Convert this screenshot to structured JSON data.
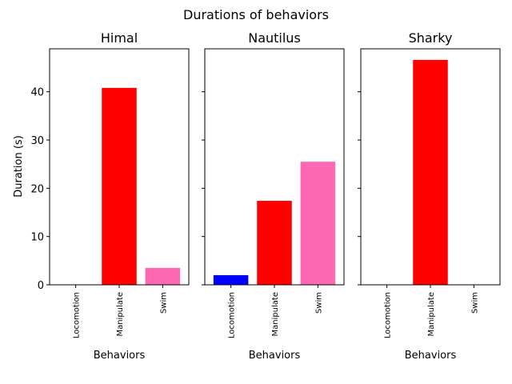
{
  "chart_data": {
    "type": "bar",
    "title": "Durations of behaviors",
    "ylabel": "Duration (s)",
    "xlabel": "Behaviors",
    "categories": [
      "Locomotion",
      "Manipulate",
      "Swim"
    ],
    "colors": {
      "Locomotion": "#0000ff",
      "Manipulate": "#ff0000",
      "Swim": "#ff69b4"
    },
    "ylim": [
      0,
      48.9
    ],
    "yticks": [
      0,
      10,
      20,
      30,
      40
    ],
    "sharey": true,
    "panels": [
      {
        "title": "Himal",
        "values": [
          0,
          40.8,
          3.5
        ]
      },
      {
        "title": "Nautilus",
        "values": [
          2.0,
          17.4,
          25.5
        ]
      },
      {
        "title": "Sharky",
        "values": [
          0,
          46.6,
          0
        ]
      }
    ]
  }
}
